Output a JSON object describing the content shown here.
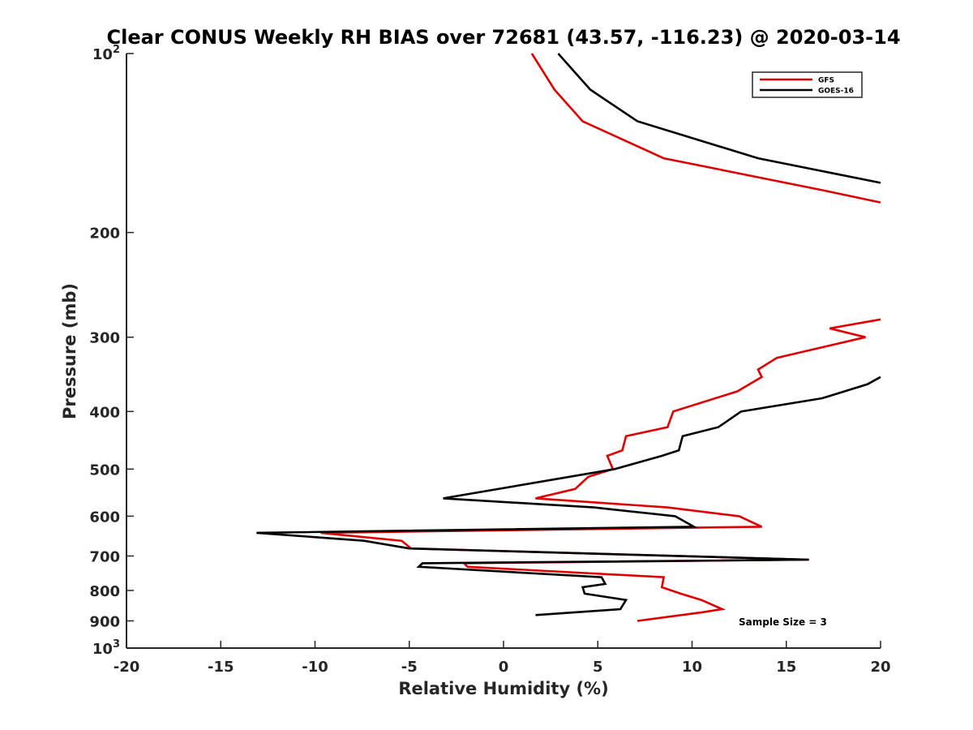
{
  "chart_data": {
    "type": "line",
    "title": "Clear CONUS Weekly RH BIAS over 72681 (43.57, -116.23) @ 2020-03-14",
    "xlabel": "Relative Humidity (%)",
    "ylabel": "Pressure (mb)",
    "xlim": [
      -20,
      20
    ],
    "ylim": [
      100,
      1000
    ],
    "y_scale": "log",
    "y_reversed": true,
    "grid": false,
    "legend_position": "top-right",
    "x_ticks": [
      -20,
      -15,
      -10,
      -5,
      0,
      5,
      10,
      15,
      20
    ],
    "x_tick_labels": [
      "-20",
      "-15",
      "-10",
      "-5",
      "0",
      "5",
      "10",
      "15",
      "20"
    ],
    "y_ticks": [
      100,
      200,
      300,
      400,
      500,
      600,
      700,
      800,
      900,
      1000
    ],
    "y_tick_labels": [
      {
        "base": "10",
        "sup": "2"
      },
      {
        "base": "200",
        "sup": ""
      },
      {
        "base": "300",
        "sup": ""
      },
      {
        "base": "400",
        "sup": ""
      },
      {
        "base": "500",
        "sup": ""
      },
      {
        "base": "600",
        "sup": ""
      },
      {
        "base": "700",
        "sup": ""
      },
      {
        "base": "800",
        "sup": ""
      },
      {
        "base": "900",
        "sup": ""
      },
      {
        "base": "10",
        "sup": "3"
      }
    ],
    "annotation": "Sample Size = 3",
    "series": [
      {
        "name": "GFS",
        "color": "#e00000",
        "points": [
          [
            1.5,
            100
          ],
          [
            2.7,
            115
          ],
          [
            4.2,
            130
          ],
          [
            8.5,
            150
          ],
          [
            17,
            170
          ],
          [
            20,
            178
          ],
          [
            null,
            null
          ],
          [
            20,
            280
          ],
          [
            17.3,
            290
          ],
          [
            19.2,
            300
          ],
          [
            14.5,
            325
          ],
          [
            13.5,
            340
          ],
          [
            13.7,
            350
          ],
          [
            12.4,
            370
          ],
          [
            9.0,
            400
          ],
          [
            8.7,
            425
          ],
          [
            6.5,
            440
          ],
          [
            6.3,
            465
          ],
          [
            5.5,
            475
          ],
          [
            5.8,
            500
          ],
          [
            4.5,
            515
          ],
          [
            3.8,
            540
          ],
          [
            1.7,
            560
          ],
          [
            8.7,
            580
          ],
          [
            12.5,
            600
          ],
          [
            13.7,
            625
          ],
          [
            -9.7,
            640
          ],
          [
            -5.4,
            660
          ],
          [
            -4.9,
            680
          ],
          [
            16.2,
            710
          ],
          [
            -2.1,
            720
          ],
          [
            -1.9,
            730
          ],
          [
            8.5,
            760
          ],
          [
            8.4,
            790
          ],
          [
            9.4,
            810
          ],
          [
            10.5,
            830
          ],
          [
            11.6,
            860
          ],
          [
            10.6,
            870
          ],
          [
            7.1,
            900
          ]
        ]
      },
      {
        "name": "GOES-16",
        "color": "#000000",
        "points": [
          [
            2.9,
            100
          ],
          [
            4.6,
            115
          ],
          [
            7.1,
            130
          ],
          [
            13.5,
            150
          ],
          [
            20,
            165
          ],
          [
            null,
            null
          ],
          [
            20,
            350
          ],
          [
            19.3,
            360
          ],
          [
            16.9,
            380
          ],
          [
            12.6,
            400
          ],
          [
            11.4,
            425
          ],
          [
            9.5,
            440
          ],
          [
            9.3,
            465
          ],
          [
            8.4,
            475
          ],
          [
            5.9,
            500
          ],
          [
            -3.2,
            560
          ],
          [
            4.8,
            580
          ],
          [
            9.1,
            600
          ],
          [
            10.1,
            625
          ],
          [
            -13.1,
            640
          ],
          [
            -7.4,
            660
          ],
          [
            -5.0,
            680
          ],
          [
            16.2,
            710
          ],
          [
            -4.3,
            720
          ],
          [
            -4.5,
            730
          ],
          [
            5.2,
            760
          ],
          [
            5.4,
            780
          ],
          [
            4.2,
            790
          ],
          [
            4.3,
            810
          ],
          [
            6.5,
            830
          ],
          [
            6.2,
            860
          ],
          [
            1.7,
            880
          ]
        ]
      }
    ]
  }
}
